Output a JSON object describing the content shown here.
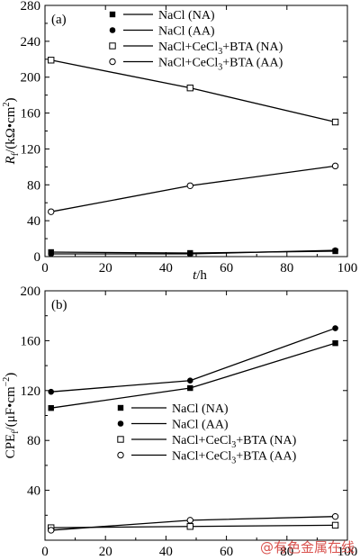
{
  "chart_data": [
    {
      "type": "line",
      "panel_label": "(a)",
      "ylabel_main": "R",
      "ylabel_sub": "f",
      "ylabel_unit": "/(kΩ•cm",
      "ylabel_sup": "2",
      "ylabel_close": ")",
      "xlabel_main": "t",
      "xlabel_unit": "/h",
      "xlim": [
        0,
        100
      ],
      "ylim": [
        0,
        280
      ],
      "xticks": [
        0,
        20,
        40,
        60,
        80,
        100
      ],
      "yticks": [
        0,
        40,
        80,
        120,
        160,
        200,
        240,
        280
      ],
      "legend_position": "top-right",
      "series": [
        {
          "name": "NaCl (NA)",
          "marker": "filled-square",
          "x": [
            2,
            48,
            96
          ],
          "y": [
            5,
            4,
            6
          ]
        },
        {
          "name": "NaCl (AA)",
          "marker": "filled-circle",
          "x": [
            2,
            48,
            96
          ],
          "y": [
            3,
            3,
            7
          ]
        },
        {
          "name": "NaCl+CeCl3+BTA (NA)",
          "name_base": "NaCl+CeCl",
          "name_sub": "3",
          "name_rest": "+BTA (NA)",
          "marker": "open-square",
          "x": [
            2,
            48,
            96
          ],
          "y": [
            219,
            188,
            150
          ]
        },
        {
          "name": "NaCl+CeCl3+BTA (AA)",
          "name_base": "NaCl+CeCl",
          "name_sub": "3",
          "name_rest": "+BTA (AA)",
          "marker": "open-circle",
          "x": [
            2,
            48,
            96
          ],
          "y": [
            50,
            79,
            101
          ]
        }
      ]
    },
    {
      "type": "line",
      "panel_label": "(b)",
      "ylabel_main": "CPE",
      "ylabel_sub": "f",
      "ylabel_unit": "/(μF•cm",
      "ylabel_sup": "−2",
      "ylabel_close": ")",
      "xlabel_main": "t",
      "xlabel_unit": "/h",
      "xlim": [
        0,
        100
      ],
      "ylim": [
        0,
        200
      ],
      "xticks": [
        0,
        20,
        40,
        60,
        80,
        100
      ],
      "yticks": [
        40,
        80,
        120,
        160,
        200
      ],
      "legend_position": "center-right",
      "series": [
        {
          "name": "NaCl (NA)",
          "marker": "filled-square",
          "x": [
            2,
            48,
            96
          ],
          "y": [
            106,
            122,
            158
          ]
        },
        {
          "name": "NaCl (AA)",
          "marker": "filled-circle",
          "x": [
            2,
            48,
            96
          ],
          "y": [
            119,
            128,
            170
          ]
        },
        {
          "name": "NaCl+CeCl3+BTA (NA)",
          "name_base": "NaCl+CeCl",
          "name_sub": "3",
          "name_rest": "+BTA (NA)",
          "marker": "open-square",
          "x": [
            2,
            48,
            96
          ],
          "y": [
            10,
            11,
            12
          ]
        },
        {
          "name": "NaCl+CeCl3+BTA (AA)",
          "name_base": "NaCl+CeCl",
          "name_sub": "3",
          "name_rest": "+BTA (AA)",
          "marker": "open-circle",
          "x": [
            2,
            48,
            96
          ],
          "y": [
            8,
            16,
            19
          ]
        }
      ]
    }
  ],
  "watermark": "@有色金属在线"
}
